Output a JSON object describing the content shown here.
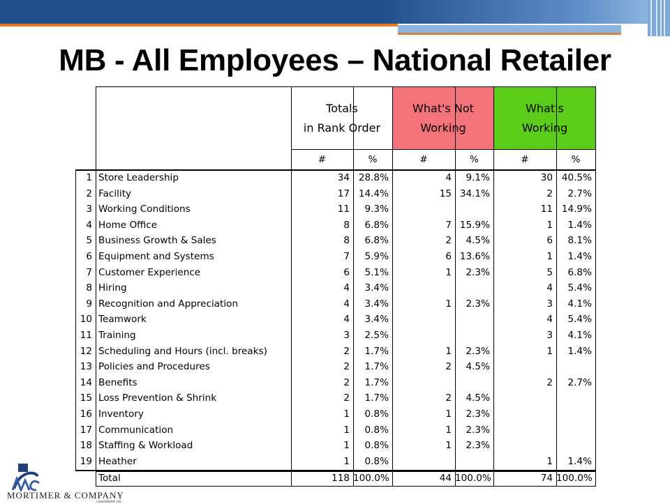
{
  "slide": {
    "title": "MB - All Employees – National Retailer"
  },
  "colors": {
    "header_bar": "#1f4e8c",
    "accent_orange": "#e07b20",
    "not_working_fill": "#f4737b",
    "working_fill": "#5ccc1a"
  },
  "table": {
    "group_headers": {
      "totals": [
        "Totals",
        "in Rank Order"
      ],
      "not_working": [
        "What's Not",
        "Working"
      ],
      "working": [
        "What's",
        "Working"
      ]
    },
    "sub_headers": [
      "#",
      "%",
      "#",
      "%",
      "#",
      "%"
    ],
    "rows": [
      {
        "rank": "1",
        "category": "Store Leadership",
        "total_n": "34",
        "total_pct": "28.8%",
        "not_n": "4",
        "not_pct": "9.1%",
        "work_n": "30",
        "work_pct": "40.5%"
      },
      {
        "rank": "2",
        "category": "Facility",
        "total_n": "17",
        "total_pct": "14.4%",
        "not_n": "15",
        "not_pct": "34.1%",
        "work_n": "2",
        "work_pct": "2.7%"
      },
      {
        "rank": "3",
        "category": "Working Conditions",
        "total_n": "11",
        "total_pct": "9.3%",
        "not_n": "",
        "not_pct": "",
        "work_n": "11",
        "work_pct": "14.9%"
      },
      {
        "rank": "4",
        "category": "Home Office",
        "total_n": "8",
        "total_pct": "6.8%",
        "not_n": "7",
        "not_pct": "15.9%",
        "work_n": "1",
        "work_pct": "1.4%"
      },
      {
        "rank": "5",
        "category": "Business Growth & Sales",
        "total_n": "8",
        "total_pct": "6.8%",
        "not_n": "2",
        "not_pct": "4.5%",
        "work_n": "6",
        "work_pct": "8.1%"
      },
      {
        "rank": "6",
        "category": "Equipment and Systems",
        "total_n": "7",
        "total_pct": "5.9%",
        "not_n": "6",
        "not_pct": "13.6%",
        "work_n": "1",
        "work_pct": "1.4%"
      },
      {
        "rank": "7",
        "category": "Customer Experience",
        "total_n": "6",
        "total_pct": "5.1%",
        "not_n": "1",
        "not_pct": "2.3%",
        "work_n": "5",
        "work_pct": "6.8%"
      },
      {
        "rank": "8",
        "category": "Hiring",
        "total_n": "4",
        "total_pct": "3.4%",
        "not_n": "",
        "not_pct": "",
        "work_n": "4",
        "work_pct": "5.4%"
      },
      {
        "rank": "9",
        "category": "Recognition and Appreciation",
        "total_n": "4",
        "total_pct": "3.4%",
        "not_n": "1",
        "not_pct": "2.3%",
        "work_n": "3",
        "work_pct": "4.1%"
      },
      {
        "rank": "10",
        "category": "Teamwork",
        "total_n": "4",
        "total_pct": "3.4%",
        "not_n": "",
        "not_pct": "",
        "work_n": "4",
        "work_pct": "5.4%"
      },
      {
        "rank": "11",
        "category": "Training",
        "total_n": "3",
        "total_pct": "2.5%",
        "not_n": "",
        "not_pct": "",
        "work_n": "3",
        "work_pct": "4.1%"
      },
      {
        "rank": "12",
        "category": "Scheduling and Hours (incl. breaks)",
        "total_n": "2",
        "total_pct": "1.7%",
        "not_n": "1",
        "not_pct": "2.3%",
        "work_n": "1",
        "work_pct": "1.4%"
      },
      {
        "rank": "13",
        "category": "Policies and Procedures",
        "total_n": "2",
        "total_pct": "1.7%",
        "not_n": "2",
        "not_pct": "4.5%",
        "work_n": "",
        "work_pct": ""
      },
      {
        "rank": "14",
        "category": "Benefits",
        "total_n": "2",
        "total_pct": "1.7%",
        "not_n": "",
        "not_pct": "",
        "work_n": "2",
        "work_pct": "2.7%"
      },
      {
        "rank": "15",
        "category": "Loss Prevention & Shrink",
        "total_n": "2",
        "total_pct": "1.7%",
        "not_n": "2",
        "not_pct": "4.5%",
        "work_n": "",
        "work_pct": ""
      },
      {
        "rank": "16",
        "category": "Inventory",
        "total_n": "1",
        "total_pct": "0.8%",
        "not_n": "1",
        "not_pct": "2.3%",
        "work_n": "",
        "work_pct": ""
      },
      {
        "rank": "17",
        "category": "Communication",
        "total_n": "1",
        "total_pct": "0.8%",
        "not_n": "1",
        "not_pct": "2.3%",
        "work_n": "",
        "work_pct": ""
      },
      {
        "rank": "18",
        "category": "Staffing & Workload",
        "total_n": "1",
        "total_pct": "0.8%",
        "not_n": "1",
        "not_pct": "2.3%",
        "work_n": "",
        "work_pct": ""
      },
      {
        "rank": "19",
        "category": "Heather",
        "total_n": "1",
        "total_pct": "0.8%",
        "not_n": "",
        "not_pct": "",
        "work_n": "1",
        "work_pct": "1.4%"
      }
    ],
    "total_row": {
      "label": "Total",
      "total_n": "118",
      "total_pct": "100.0%",
      "not_n": "44",
      "not_pct": "100.0%",
      "work_n": "74",
      "work_pct": "100.0%"
    }
  },
  "logo": {
    "company": "Mortimer & Company",
    "tagline": "consultants inc."
  }
}
